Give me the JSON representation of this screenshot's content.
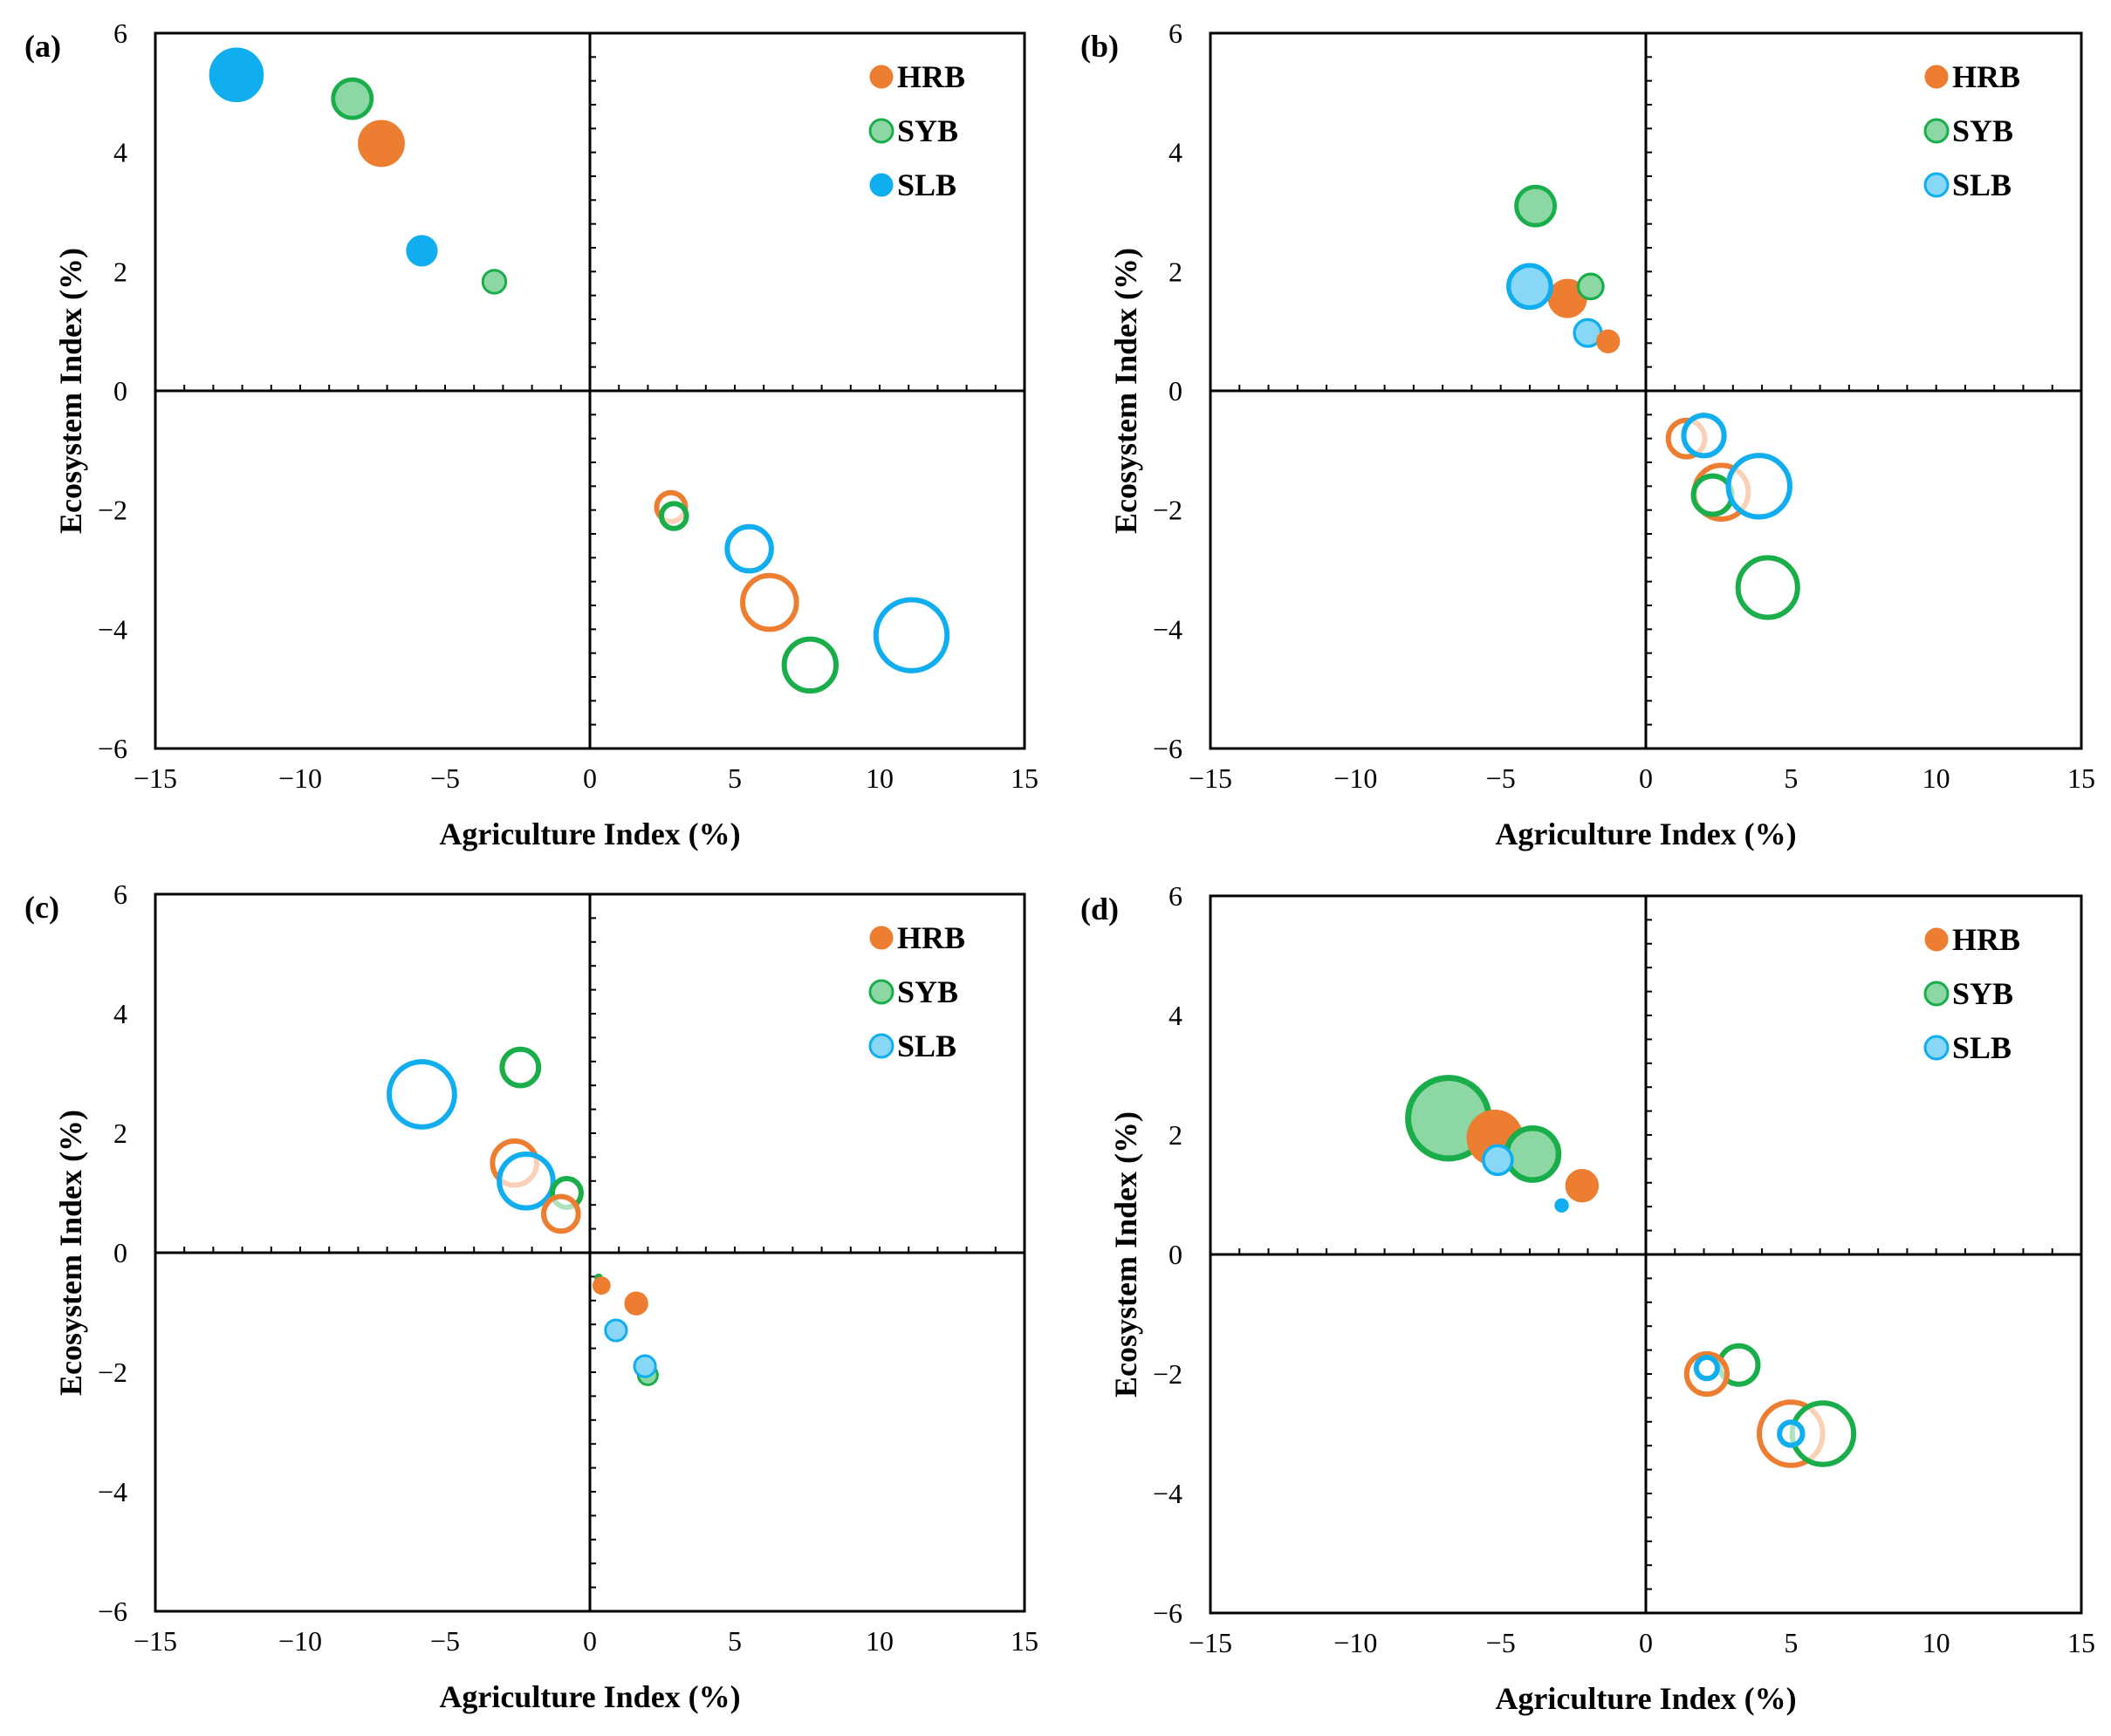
{
  "colors": {
    "HRB": "#ED7D31",
    "SYB": "#1AAE4B",
    "SLB": "#10AEEF"
  },
  "chart_data": [
    {
      "panel": "(a)",
      "type": "scatter",
      "xlabel": "Agriculture Index (%)",
      "ylabel": "Ecosystem Index (%)",
      "xlim": [
        -15,
        15
      ],
      "ylim": [
        -6,
        6
      ],
      "xticks": [
        "−15",
        "−10",
        "−5",
        "0",
        "5",
        "10",
        "15"
      ],
      "yticks": [
        "−6",
        "−4",
        "−2",
        "0",
        "2",
        "4",
        "6"
      ],
      "legend": [
        {
          "series": "HRB",
          "label": "HRB",
          "style": "filled"
        },
        {
          "series": "SYB",
          "label": "SYB",
          "style": "ring"
        },
        {
          "series": "SLB",
          "label": "SLB",
          "style": "filled"
        }
      ],
      "points": [
        {
          "series": "SLB",
          "x": -12.2,
          "y": 5.3,
          "size": 1.4,
          "style": "filled"
        },
        {
          "series": "SYB",
          "x": -8.2,
          "y": 4.9,
          "size": 1.0,
          "style": "ring"
        },
        {
          "series": "HRB",
          "x": -7.2,
          "y": 4.15,
          "size": 1.2,
          "style": "filled"
        },
        {
          "series": "SLB",
          "x": -5.8,
          "y": 2.35,
          "size": 0.8,
          "style": "filled"
        },
        {
          "series": "HRB",
          "x": -3.3,
          "y": 1.83,
          "size": 0.6,
          "style": "filled"
        },
        {
          "series": "SYB",
          "x": -3.3,
          "y": 1.83,
          "size": 0.6,
          "style": "ring"
        },
        {
          "series": "HRB",
          "x": 2.8,
          "y": -1.95,
          "size": 0.75,
          "style": "open"
        },
        {
          "series": "SYB",
          "x": 2.9,
          "y": -2.1,
          "size": 0.65,
          "style": "open"
        },
        {
          "series": "SLB",
          "x": 5.5,
          "y": -2.65,
          "size": 1.15,
          "style": "open"
        },
        {
          "series": "HRB",
          "x": 6.2,
          "y": -3.55,
          "size": 1.4,
          "style": "open"
        },
        {
          "series": "SYB",
          "x": 7.6,
          "y": -4.6,
          "size": 1.35,
          "style": "open"
        },
        {
          "series": "SLB",
          "x": 11.1,
          "y": -4.1,
          "size": 1.85,
          "style": "open"
        }
      ]
    },
    {
      "panel": "(b)",
      "type": "scatter",
      "xlabel": "Agriculture Index (%)",
      "ylabel": "Ecosystem Index (%)",
      "xlim": [
        -15,
        15
      ],
      "ylim": [
        -6,
        6
      ],
      "xticks": [
        "−15",
        "−10",
        "−5",
        "0",
        "5",
        "10",
        "15"
      ],
      "yticks": [
        "−6",
        "−4",
        "−2",
        "0",
        "2",
        "4",
        "6"
      ],
      "legend": [
        {
          "series": "HRB",
          "label": "HRB",
          "style": "filled"
        },
        {
          "series": "SYB",
          "label": "SYB",
          "style": "ring"
        },
        {
          "series": "SLB",
          "label": "SLB",
          "style": "ring"
        }
      ],
      "points": [
        {
          "series": "SYB",
          "x": -3.8,
          "y": 3.1,
          "size": 1.0,
          "style": "ring"
        },
        {
          "series": "HRB",
          "x": -2.7,
          "y": 1.55,
          "size": 1.0,
          "style": "filled"
        },
        {
          "series": "SLB",
          "x": -4.0,
          "y": 1.75,
          "size": 1.1,
          "style": "ring"
        },
        {
          "series": "SYB",
          "x": -1.9,
          "y": 1.75,
          "size": 0.65,
          "style": "ring"
        },
        {
          "series": "SLB",
          "x": -2.0,
          "y": 0.97,
          "size": 0.7,
          "style": "ring"
        },
        {
          "series": "HRB",
          "x": -1.3,
          "y": 0.83,
          "size": 0.6,
          "style": "filled"
        },
        {
          "series": "HRB",
          "x": 1.4,
          "y": -0.8,
          "size": 0.95,
          "style": "open"
        },
        {
          "series": "SLB",
          "x": 2.0,
          "y": -0.75,
          "size": 1.05,
          "style": "open"
        },
        {
          "series": "HRB",
          "x": 2.6,
          "y": -1.7,
          "size": 1.4,
          "style": "open"
        },
        {
          "series": "SYB",
          "x": 2.3,
          "y": -1.75,
          "size": 1.0,
          "style": "open"
        },
        {
          "series": "SLB",
          "x": 3.9,
          "y": -1.6,
          "size": 1.6,
          "style": "open"
        },
        {
          "series": "SYB",
          "x": 4.2,
          "y": -3.3,
          "size": 1.55,
          "style": "open"
        }
      ]
    },
    {
      "panel": "(c)",
      "type": "scatter",
      "xlabel": "Agriculture Index (%)",
      "ylabel": "Ecosystem Index (%)",
      "xlim": [
        -15,
        15
      ],
      "ylim": [
        -6,
        6
      ],
      "xticks": [
        "−15",
        "−10",
        "−5",
        "0",
        "5",
        "10",
        "15"
      ],
      "yticks": [
        "−6",
        "−4",
        "−2",
        "0",
        "2",
        "4",
        "6"
      ],
      "legend": [
        {
          "series": "HRB",
          "label": "HRB",
          "style": "filled"
        },
        {
          "series": "SYB",
          "label": "SYB",
          "style": "ring"
        },
        {
          "series": "SLB",
          "label": "SLB",
          "style": "ring"
        }
      ],
      "points": [
        {
          "series": "SLB",
          "x": -5.8,
          "y": 2.65,
          "size": 1.7,
          "style": "open"
        },
        {
          "series": "SYB",
          "x": -2.4,
          "y": 3.1,
          "size": 0.95,
          "style": "open"
        },
        {
          "series": "HRB",
          "x": -2.6,
          "y": 1.5,
          "size": 1.15,
          "style": "open"
        },
        {
          "series": "SLB",
          "x": -2.2,
          "y": 1.2,
          "size": 1.4,
          "style": "open"
        },
        {
          "series": "SYB",
          "x": -0.8,
          "y": 1.0,
          "size": 0.75,
          "style": "open"
        },
        {
          "series": "HRB",
          "x": -1.0,
          "y": 0.65,
          "size": 0.9,
          "style": "open"
        },
        {
          "series": "SYB",
          "x": 0.3,
          "y": -0.42,
          "size": 0.2,
          "style": "filled"
        },
        {
          "series": "HRB",
          "x": 0.4,
          "y": -0.55,
          "size": 0.45,
          "style": "filled"
        },
        {
          "series": "HRB",
          "x": 1.6,
          "y": -0.85,
          "size": 0.6,
          "style": "filled"
        },
        {
          "series": "SLB",
          "x": 0.9,
          "y": -1.3,
          "size": 0.55,
          "style": "ring"
        },
        {
          "series": "SYB",
          "x": 2.0,
          "y": -2.05,
          "size": 0.5,
          "style": "ring"
        },
        {
          "series": "SLB",
          "x": 1.9,
          "y": -1.9,
          "size": 0.55,
          "style": "ring"
        }
      ]
    },
    {
      "panel": "(d)",
      "type": "scatter",
      "xlabel": "Agriculture Index (%)",
      "ylabel": "Ecosystem Index (%)",
      "xlim": [
        -15,
        15
      ],
      "ylim": [
        -6,
        6
      ],
      "xticks": [
        "−15",
        "−10",
        "−5",
        "0",
        "5",
        "10",
        "15"
      ],
      "yticks": [
        "−6",
        "−4",
        "−2",
        "0",
        "2",
        "4",
        "6"
      ],
      "legend": [
        {
          "series": "HRB",
          "label": "HRB",
          "style": "filled"
        },
        {
          "series": "SYB",
          "label": "SYB",
          "style": "ring"
        },
        {
          "series": "SLB",
          "label": "SLB",
          "style": "ring"
        }
      ],
      "points": [
        {
          "series": "SYB",
          "x": -6.8,
          "y": 2.28,
          "size": 2.1,
          "style": "ring"
        },
        {
          "series": "HRB",
          "x": -5.2,
          "y": 1.95,
          "size": 1.45,
          "style": "filled"
        },
        {
          "series": "SYB",
          "x": -3.9,
          "y": 1.68,
          "size": 1.35,
          "style": "ring"
        },
        {
          "series": "SLB",
          "x": -5.1,
          "y": 1.58,
          "size": 0.75,
          "style": "ring"
        },
        {
          "series": "HRB",
          "x": -2.2,
          "y": 1.15,
          "size": 0.85,
          "style": "filled"
        },
        {
          "series": "SLB",
          "x": -2.9,
          "y": 0.82,
          "size": 0.35,
          "style": "filled"
        },
        {
          "series": "SYB",
          "x": 3.2,
          "y": -1.85,
          "size": 1.0,
          "style": "open"
        },
        {
          "series": "HRB",
          "x": 2.1,
          "y": -2.0,
          "size": 1.05,
          "style": "open"
        },
        {
          "series": "SLB",
          "x": 2.1,
          "y": -1.9,
          "size": 0.55,
          "style": "open"
        },
        {
          "series": "HRB",
          "x": 5.0,
          "y": -3.0,
          "size": 1.65,
          "style": "open"
        },
        {
          "series": "SYB",
          "x": 6.1,
          "y": -3.0,
          "size": 1.6,
          "style": "open"
        },
        {
          "series": "SLB",
          "x": 5.0,
          "y": -3.0,
          "size": 0.6,
          "style": "open"
        }
      ]
    }
  ]
}
